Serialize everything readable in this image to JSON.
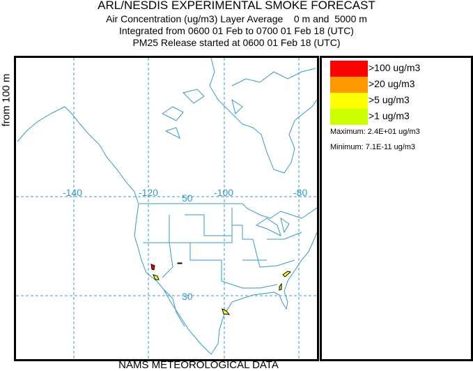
{
  "header": {
    "title": "ARL/NESDIS EXPERIMENTAL SMOKE FORECAST",
    "line2": "Air Concentration (ug/m3) Layer Average    0 m and  5000 m",
    "line3": "Integrated from 0600 01 Feb to 0700 01 Feb 18 (UTC)",
    "line4": "PM25 Release started at 0600 01 Feb 18 (UTC)"
  },
  "side_label": "from  100 m",
  "footer": "NAMS METEOROLOGICAL DATA",
  "map": {
    "longitude_labels": [
      "-140",
      "-120",
      "-100",
      "-80"
    ],
    "latitude_labels": [
      "50",
      "30"
    ],
    "line_color": "#3399cc"
  },
  "legend": {
    "items": [
      {
        "label": ">100 ug/m3",
        "color": "#ff0000"
      },
      {
        "label": ">20 ug/m3",
        "color": "#ff9900"
      },
      {
        "label": ">5 ug/m3",
        "color": "#ffff00"
      },
      {
        "label": ">1 ug/m3",
        "color": "#ccff00"
      }
    ],
    "maximum": "Maximum: 2.4E+01 ug/m3",
    "minimum": "Minimum: 7.1E-11 ug/m3"
  }
}
